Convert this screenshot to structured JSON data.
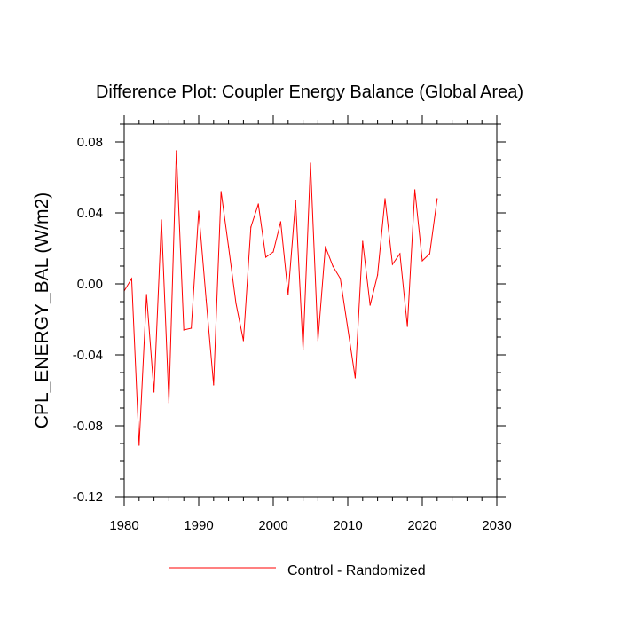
{
  "chart_data": {
    "type": "line",
    "title": "Difference Plot: Coupler Energy Balance (Global Area)",
    "xlabel": "",
    "ylabel": "CPL_ENERGY_BAL  (W/m2)",
    "xlim": [
      1980,
      2030
    ],
    "ylim": [
      -0.12,
      0.09
    ],
    "x_ticks": [
      1980,
      1990,
      2000,
      2010,
      2020,
      2030
    ],
    "x_tick_labels": [
      "1980",
      "1990",
      "2000",
      "2010",
      "2020",
      "2030"
    ],
    "x_minor_step": 2,
    "y_ticks": [
      -0.12,
      -0.08,
      -0.04,
      0.0,
      0.04,
      0.08
    ],
    "y_tick_labels": [
      "-0.12",
      "-0.08",
      "-0.04",
      "0.00",
      "0.04",
      "0.08"
    ],
    "y_minor_step": 0.01,
    "grid": false,
    "legend_position": "bottom-center",
    "series": [
      {
        "name": "Control - Randomized",
        "color": "#ff0000",
        "x": [
          1980,
          1981,
          1982,
          1983,
          1984,
          1985,
          1986,
          1987,
          1988,
          1989,
          1990,
          1991,
          1992,
          1993,
          1994,
          1995,
          1996,
          1997,
          1998,
          1999,
          2000,
          2001,
          2002,
          2003,
          2004,
          2005,
          2006,
          2007,
          2008,
          2009,
          2010,
          2011,
          2012,
          2013,
          2014,
          2015,
          2016,
          2017,
          2018,
          2019,
          2020,
          2021,
          2022
        ],
        "values": [
          -0.004,
          0.003,
          -0.091,
          -0.006,
          -0.061,
          0.036,
          -0.067,
          0.075,
          -0.026,
          -0.025,
          0.041,
          -0.009,
          -0.057,
          0.052,
          0.021,
          -0.011,
          -0.032,
          0.032,
          0.045,
          0.015,
          0.018,
          0.035,
          -0.006,
          0.047,
          -0.037,
          0.068,
          -0.032,
          0.021,
          0.01,
          0.003,
          -0.025,
          -0.053,
          0.024,
          -0.012,
          0.005,
          0.048,
          0.011,
          0.017,
          -0.024,
          0.053,
          0.013,
          0.017,
          0.048
        ]
      }
    ]
  }
}
